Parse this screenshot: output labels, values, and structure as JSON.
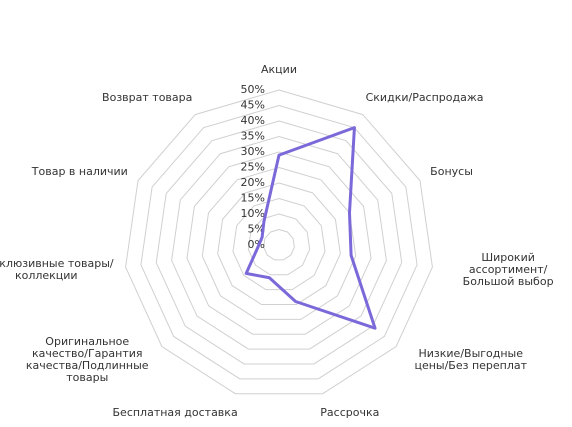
{
  "chart_data": {
    "type": "radar",
    "categories": [
      "Акции",
      "Скидки/Распродажа",
      "Бонусы",
      "Широкий ассортимент/Большой выбор",
      "Низкие/Выгодные цены/Без переплат",
      "Рассрочка",
      "Бесплатная доставка",
      "Оригинальное качество/Гарантия качества/Подлинные товары",
      "Эксклюзивные товары/коллекции",
      "Товар в наличии",
      "Возврат товара"
    ],
    "values": [
      29,
      45,
      25,
      23.5,
      41,
      19,
      11,
      14,
      7,
      6,
      9
    ],
    "color": "#7b68d9",
    "ylim": [
      0,
      50
    ],
    "yticks": [
      {
        "value": 0,
        "label": "0%"
      },
      {
        "value": 5,
        "label": "5%"
      },
      {
        "value": 10,
        "label": "10%"
      },
      {
        "value": 15,
        "label": "15%"
      },
      {
        "value": 20,
        "label": "20%"
      },
      {
        "value": 25,
        "label": "25%"
      },
      {
        "value": 30,
        "label": "30%"
      },
      {
        "value": 35,
        "label": "35%"
      },
      {
        "value": 40,
        "label": "40%"
      },
      {
        "value": 45,
        "label": "45%"
      },
      {
        "value": 50,
        "label": "50%"
      }
    ],
    "grid": true
  }
}
